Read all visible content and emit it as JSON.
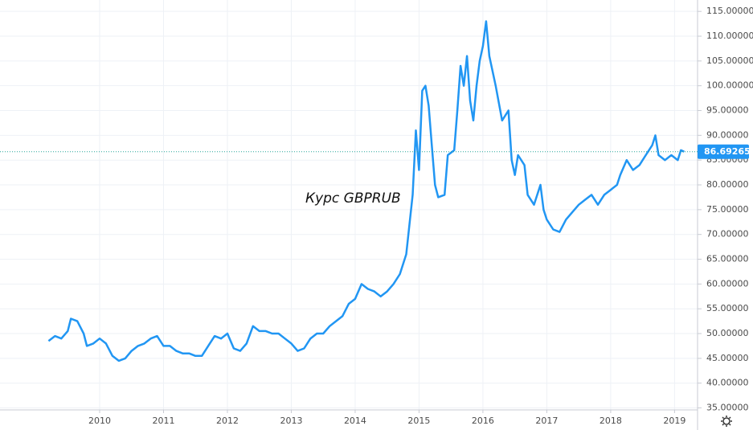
{
  "chart_data": {
    "type": "line",
    "title": "Курс GBPRUB",
    "x": [
      2009.2,
      2009.3,
      2009.4,
      2009.5,
      2009.55,
      2009.65,
      2009.75,
      2009.8,
      2009.9,
      2010.0,
      2010.1,
      2010.2,
      2010.3,
      2010.4,
      2010.5,
      2010.6,
      2010.7,
      2010.8,
      2010.9,
      2011.0,
      2011.1,
      2011.2,
      2011.3,
      2011.4,
      2011.5,
      2011.6,
      2011.7,
      2011.8,
      2011.9,
      2012.0,
      2012.1,
      2012.2,
      2012.3,
      2012.4,
      2012.5,
      2012.6,
      2012.7,
      2012.8,
      2012.9,
      2013.0,
      2013.1,
      2013.2,
      2013.3,
      2013.4,
      2013.5,
      2013.6,
      2013.7,
      2013.8,
      2013.9,
      2014.0,
      2014.1,
      2014.2,
      2014.3,
      2014.4,
      2014.5,
      2014.6,
      2014.7,
      2014.8,
      2014.85,
      2014.9,
      2014.95,
      2015.0,
      2015.05,
      2015.1,
      2015.15,
      2015.2,
      2015.25,
      2015.3,
      2015.4,
      2015.45,
      2015.55,
      2015.6,
      2015.65,
      2015.7,
      2015.75,
      2015.8,
      2015.85,
      2015.9,
      2015.95,
      2016.0,
      2016.05,
      2016.1,
      2016.2,
      2016.3,
      2016.4,
      2016.45,
      2016.5,
      2016.55,
      2016.65,
      2016.7,
      2016.8,
      2016.9,
      2016.95,
      2017.0,
      2017.1,
      2017.2,
      2017.3,
      2017.4,
      2017.5,
      2017.6,
      2017.7,
      2017.8,
      2017.9,
      2018.0,
      2018.1,
      2018.15,
      2018.25,
      2018.35,
      2018.45,
      2018.55,
      2018.65,
      2018.7,
      2018.75,
      2018.85,
      2018.95,
      2019.05,
      2019.1,
      2019.15
    ],
    "series": [
      {
        "color": "#2196f3",
        "values": [
          48.5,
          49.5,
          49,
          50.5,
          53,
          52.5,
          50,
          47.5,
          48,
          49,
          48,
          45.5,
          44.5,
          45,
          46.5,
          47.5,
          48,
          49,
          49.5,
          47.5,
          47.5,
          46.5,
          46,
          46,
          45.5,
          45.5,
          47.5,
          49.5,
          49,
          50,
          47,
          46.5,
          48,
          51.5,
          50.5,
          50.5,
          50,
          50,
          49,
          48,
          46.5,
          47,
          49,
          50,
          50,
          51.5,
          52.5,
          53.5,
          56,
          57,
          60,
          59,
          58.5,
          57.5,
          58.5,
          60,
          62,
          66,
          72,
          78,
          91,
          83,
          99,
          100,
          96,
          88,
          80,
          77.5,
          78,
          86,
          87,
          95,
          104,
          100,
          106,
          97,
          93,
          100,
          105,
          108,
          113,
          106,
          100,
          93,
          95,
          85,
          82,
          86,
          84,
          78,
          76,
          80,
          75,
          73,
          71,
          70.5,
          73,
          74.5,
          76,
          77,
          78,
          76,
          78,
          79,
          80,
          82,
          85,
          83,
          84,
          86,
          88,
          90,
          86,
          85,
          86,
          85,
          87,
          86.7
        ]
      }
    ],
    "current_value": 86.69265,
    "current_color": "#26a69a",
    "xlim": [
      2008.44,
      2019.36
    ],
    "xticks": [
      2010,
      2011,
      2012,
      2013,
      2014,
      2015,
      2016,
      2017,
      2018,
      2019
    ],
    "ylim": [
      34.6,
      117.3
    ],
    "yticks": [
      {
        "value": 35,
        "label": "35.00000"
      },
      {
        "value": 40,
        "label": "40.00000"
      },
      {
        "value": 45,
        "label": "45.00000"
      },
      {
        "value": 50,
        "label": "50.00000"
      },
      {
        "value": 55,
        "label": "55.00000"
      },
      {
        "value": 60,
        "label": "60.00000"
      },
      {
        "value": 65,
        "label": "65.00000"
      },
      {
        "value": 70,
        "label": "70.00000"
      },
      {
        "value": 75,
        "label": "75.00000"
      },
      {
        "value": 80,
        "label": "80.00000"
      },
      {
        "value": 85,
        "label": "85.00000"
      },
      {
        "value": 90,
        "label": "90.00000"
      },
      {
        "value": 95,
        "label": "95.00000"
      },
      {
        "value": 100,
        "label": "100.00000"
      },
      {
        "value": 105,
        "label": "105.00000"
      },
      {
        "value": 110,
        "label": "110.00000"
      },
      {
        "value": 115,
        "label": "115.00000"
      }
    ],
    "grid": true
  }
}
